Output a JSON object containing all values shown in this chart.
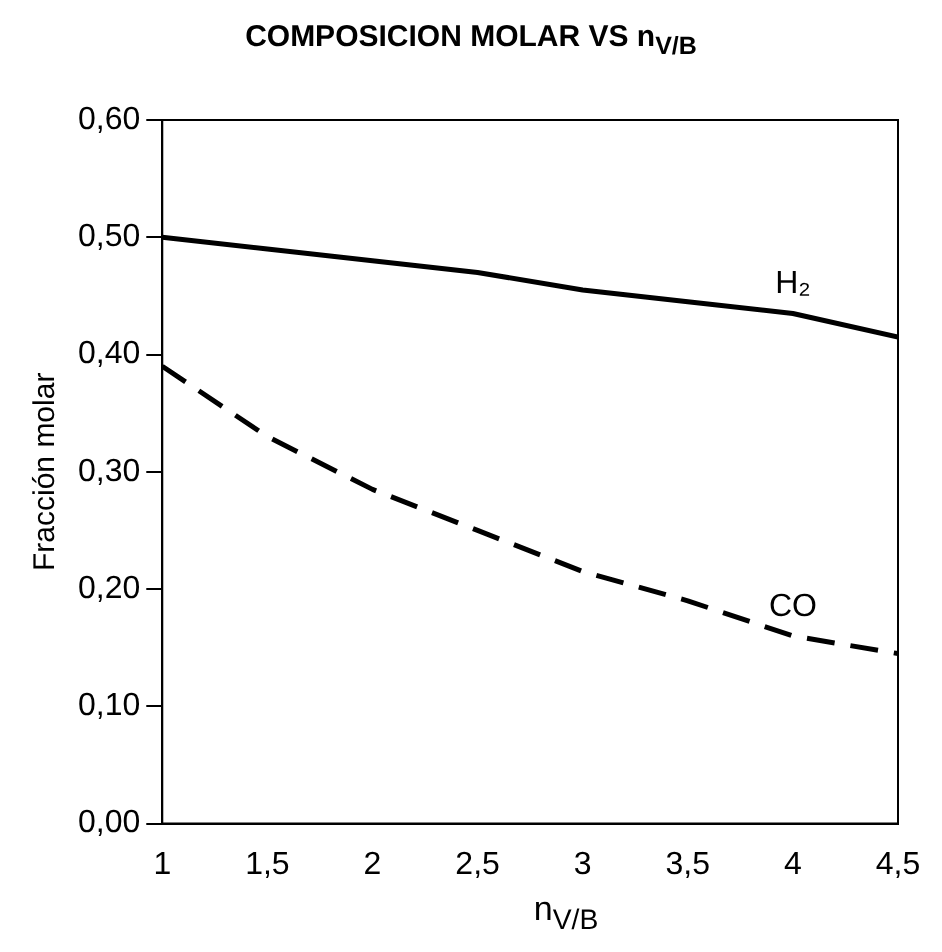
{
  "chart_data": {
    "type": "line",
    "title": "COMPOSICION MOLAR VS n$_{V/B}$",
    "xlabel": "n$_{V/B}$",
    "ylabel": "Fracción molar",
    "x": [
      1,
      1.5,
      2,
      2.5,
      3,
      3.5,
      4,
      4.5
    ],
    "series": [
      {
        "name": "H₂",
        "color": "#000000",
        "line_style": "solid",
        "values": [
          0.5,
          0.49,
          0.48,
          0.47,
          0.455,
          0.445,
          0.435,
          0.415
        ]
      },
      {
        "name": "CO",
        "color": "#000000",
        "line_style": "dashed",
        "values": [
          0.39,
          0.33,
          0.285,
          0.25,
          0.215,
          0.19,
          0.16,
          0.145
        ]
      }
    ],
    "xlim": [
      1,
      4.5
    ],
    "xticks": [
      1,
      {
        "value": 1.5,
        "label": "1,5"
      },
      2,
      {
        "value": 2.5,
        "label": "2,5"
      },
      3,
      {
        "value": 3.5,
        "label": "3,5"
      },
      4,
      {
        "value": 4.5,
        "label": "4,5"
      }
    ],
    "ylim": [
      0,
      0.6
    ],
    "yticks": [
      {
        "value": 0,
        "label": "0,00"
      },
      {
        "value": 0.1,
        "label": "0,10"
      },
      {
        "value": 0.2,
        "label": "0,20"
      },
      {
        "value": 0.3,
        "label": "0,30"
      },
      {
        "value": 0.4,
        "label": "0,40"
      },
      {
        "value": 0.5,
        "label": "0,50"
      },
      {
        "value": 0.6,
        "label": "0,60"
      }
    ],
    "grid": false,
    "legend": false,
    "marker": "none"
  }
}
